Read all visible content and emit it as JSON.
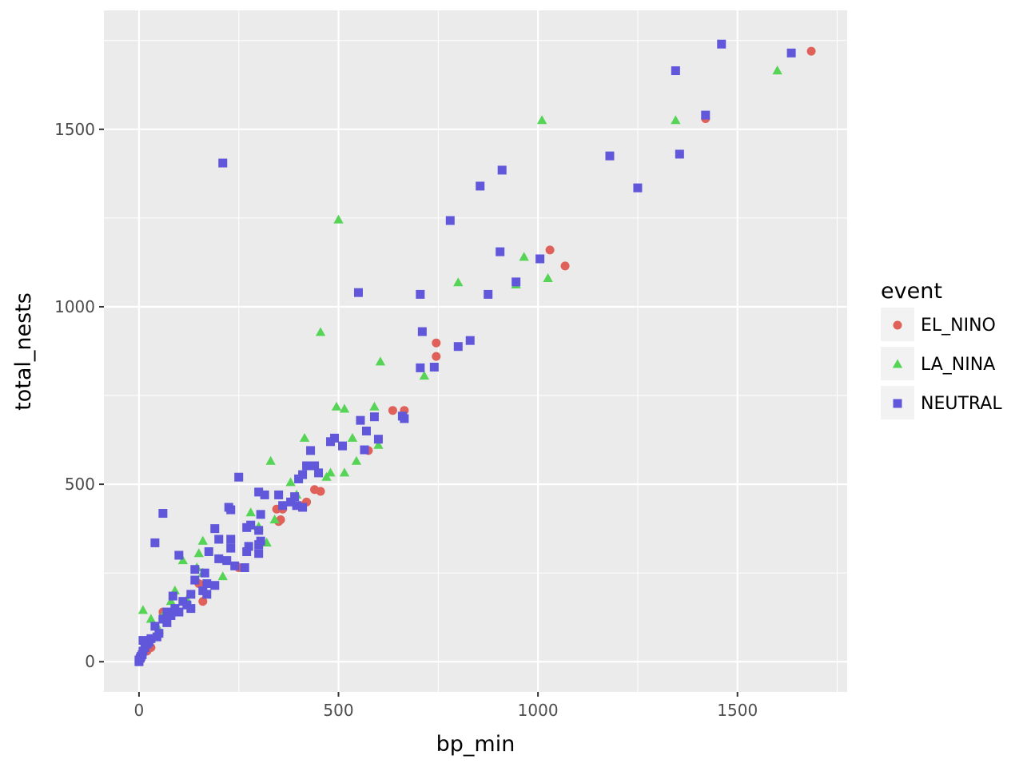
{
  "chart_data": {
    "type": "scatter",
    "title": "",
    "xlabel": "bp_min",
    "ylabel": "total_nests",
    "xlim": [
      -88,
      1775
    ],
    "ylim": [
      -85,
      1835
    ],
    "x_ticks": [
      0,
      500,
      1000,
      1500
    ],
    "y_ticks": [
      0,
      500,
      1000,
      1500
    ],
    "x_tick_labels": [
      "0",
      "500",
      "1000",
      "1500"
    ],
    "y_tick_labels": [
      "0",
      "500",
      "1000",
      "1500"
    ],
    "grid": true,
    "legend": {
      "title": "event",
      "placement": "right"
    },
    "series": [
      {
        "name": "EL_NINO",
        "color": "#e0605a",
        "marker": "circle",
        "points": [
          [
            1685,
            1720
          ],
          [
            1420,
            1530
          ],
          [
            1030,
            1160
          ],
          [
            1068,
            1115
          ],
          [
            745,
            898
          ],
          [
            745,
            860
          ],
          [
            636,
            708
          ],
          [
            665,
            708
          ],
          [
            575,
            595
          ],
          [
            440,
            485
          ],
          [
            455,
            480
          ],
          [
            420,
            450
          ],
          [
            410,
            440
          ],
          [
            360,
            430
          ],
          [
            345,
            430
          ],
          [
            355,
            400
          ],
          [
            350,
            395
          ],
          [
            250,
            265
          ],
          [
            160,
            170
          ],
          [
            150,
            220
          ],
          [
            60,
            140
          ],
          [
            30,
            40
          ],
          [
            20,
            30
          ],
          [
            5,
            10
          ]
        ]
      },
      {
        "name": "LA_NINA",
        "color": "#55d455",
        "marker": "triangle",
        "points": [
          [
            1600,
            1665
          ],
          [
            1345,
            1525
          ],
          [
            1010,
            1525
          ],
          [
            500,
            1245
          ],
          [
            965,
            1140
          ],
          [
            1025,
            1080
          ],
          [
            800,
            1068
          ],
          [
            945,
            1062
          ],
          [
            455,
            928
          ],
          [
            605,
            845
          ],
          [
            715,
            805
          ],
          [
            495,
            718
          ],
          [
            515,
            712
          ],
          [
            590,
            718
          ],
          [
            415,
            630
          ],
          [
            535,
            630
          ],
          [
            330,
            565
          ],
          [
            545,
            565
          ],
          [
            515,
            532
          ],
          [
            480,
            532
          ],
          [
            380,
            505
          ],
          [
            395,
            470
          ],
          [
            470,
            520
          ],
          [
            600,
            610
          ],
          [
            280,
            420
          ],
          [
            340,
            400
          ],
          [
            300,
            380
          ],
          [
            320,
            335
          ],
          [
            160,
            340
          ],
          [
            150,
            305
          ],
          [
            110,
            285
          ],
          [
            145,
            265
          ],
          [
            160,
            250
          ],
          [
            210,
            240
          ],
          [
            90,
            200
          ],
          [
            80,
            170
          ],
          [
            120,
            175
          ],
          [
            10,
            145
          ],
          [
            60,
            130
          ],
          [
            30,
            120
          ],
          [
            50,
            90
          ],
          [
            20,
            60
          ],
          [
            5,
            20
          ]
        ]
      },
      {
        "name": "NEUTRAL",
        "color": "#6157db",
        "marker": "square",
        "points": [
          [
            1460,
            1740
          ],
          [
            1635,
            1715
          ],
          [
            1345,
            1665
          ],
          [
            1420,
            1540
          ],
          [
            1355,
            1430
          ],
          [
            1180,
            1425
          ],
          [
            210,
            1405
          ],
          [
            910,
            1385
          ],
          [
            855,
            1340
          ],
          [
            1250,
            1335
          ],
          [
            780,
            1243
          ],
          [
            905,
            1155
          ],
          [
            1005,
            1135
          ],
          [
            945,
            1070
          ],
          [
            550,
            1040
          ],
          [
            705,
            1035
          ],
          [
            875,
            1035
          ],
          [
            710,
            930
          ],
          [
            830,
            905
          ],
          [
            800,
            888
          ],
          [
            705,
            828
          ],
          [
            740,
            830
          ],
          [
            660,
            692
          ],
          [
            665,
            685
          ],
          [
            555,
            680
          ],
          [
            590,
            690
          ],
          [
            490,
            630
          ],
          [
            570,
            650
          ],
          [
            600,
            627
          ],
          [
            480,
            620
          ],
          [
            510,
            608
          ],
          [
            565,
            597
          ],
          [
            430,
            595
          ],
          [
            420,
            552
          ],
          [
            440,
            552
          ],
          [
            250,
            520
          ],
          [
            410,
            527
          ],
          [
            400,
            515
          ],
          [
            450,
            532
          ],
          [
            300,
            478
          ],
          [
            315,
            470
          ],
          [
            350,
            470
          ],
          [
            390,
            465
          ],
          [
            380,
            450
          ],
          [
            360,
            440
          ],
          [
            410,
            435
          ],
          [
            395,
            440
          ],
          [
            225,
            435
          ],
          [
            230,
            428
          ],
          [
            60,
            418
          ],
          [
            305,
            415
          ],
          [
            280,
            385
          ],
          [
            270,
            378
          ],
          [
            300,
            370
          ],
          [
            190,
            375
          ],
          [
            230,
            345
          ],
          [
            305,
            340
          ],
          [
            40,
            335
          ],
          [
            275,
            325
          ],
          [
            200,
            345
          ],
          [
            300,
            330
          ],
          [
            230,
            320
          ],
          [
            270,
            310
          ],
          [
            300,
            305
          ],
          [
            175,
            310
          ],
          [
            100,
            300
          ],
          [
            200,
            290
          ],
          [
            220,
            285
          ],
          [
            240,
            270
          ],
          [
            265,
            265
          ],
          [
            140,
            260
          ],
          [
            165,
            250
          ],
          [
            190,
            215
          ],
          [
            170,
            220
          ],
          [
            140,
            230
          ],
          [
            160,
            200
          ],
          [
            170,
            190
          ],
          [
            130,
            190
          ],
          [
            85,
            185
          ],
          [
            110,
            170
          ],
          [
            120,
            160
          ],
          [
            90,
            150
          ],
          [
            100,
            140
          ],
          [
            130,
            150
          ],
          [
            70,
            140
          ],
          [
            80,
            130
          ],
          [
            60,
            120
          ],
          [
            40,
            100
          ],
          [
            70,
            110
          ],
          [
            50,
            80
          ],
          [
            45,
            70
          ],
          [
            30,
            65
          ],
          [
            25,
            55
          ],
          [
            20,
            50
          ],
          [
            10,
            60
          ],
          [
            15,
            40
          ],
          [
            10,
            30
          ],
          [
            8,
            20
          ],
          [
            5,
            15
          ],
          [
            3,
            10
          ],
          [
            0,
            5
          ],
          [
            0,
            0
          ]
        ]
      }
    ]
  }
}
